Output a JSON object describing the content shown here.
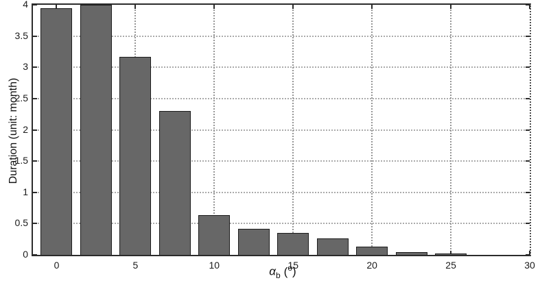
{
  "chart_data": {
    "type": "bar",
    "x": [
      0,
      2.5,
      5,
      7.5,
      10,
      12.5,
      15,
      17.5,
      20,
      22.5,
      25
    ],
    "values": [
      3.95,
      4.0,
      3.17,
      2.3,
      0.64,
      0.42,
      0.35,
      0.26,
      0.13,
      0.04,
      0.02
    ],
    "bar_width": 2.0,
    "ylabel": "Duration (unit: month)",
    "xlabel_parts": {
      "alpha": "α",
      "subscript": "b",
      "paren_open": "(",
      "degree": "o",
      "paren_close": ")"
    },
    "xlim": [
      -1.5,
      30
    ],
    "ylim": [
      0,
      4
    ],
    "xticks": [
      0,
      5,
      10,
      15,
      20,
      25,
      30
    ],
    "yticks": [
      0,
      0.5,
      1,
      1.5,
      2,
      2.5,
      3,
      3.5,
      4
    ],
    "grid": true,
    "legend": null,
    "title": "",
    "colors": {
      "bar_fill": "#676767",
      "bar_edge": "#1c1c1c",
      "axis_box": "#2b2b2b",
      "grid_line": "#aaaaaa",
      "tick_text": "#1a1a1a",
      "background": "#ffffff"
    }
  }
}
